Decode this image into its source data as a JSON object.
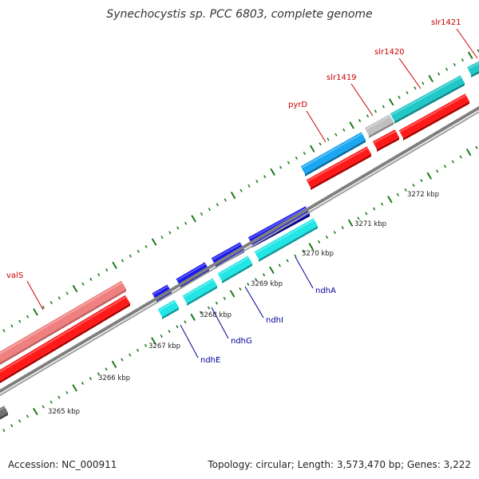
{
  "title": "Synechocystis sp. PCC 6803, complete genome",
  "footer": {
    "accession": "Accession: NC_000911",
    "summary": "Topology: circular; Length: 3,573,470 bp; Genes: 3,222"
  },
  "colors": {
    "backbone": "#7f7f7f",
    "tick": "#1a7a1a",
    "label_red": "#cc0000",
    "label_blue": "#000099"
  },
  "scale_labels": [
    "3265 kbp",
    "3266 kbp",
    "3267 kbp",
    "3268 kbp",
    "3269 kbp",
    "3270 kbp",
    "3271 kbp",
    "3272 kbp"
  ],
  "gene_labels": [
    {
      "name": "valS",
      "color": "#cc0000"
    },
    {
      "name": "pyrD",
      "color": "#cc0000"
    },
    {
      "name": "slr1419",
      "color": "#cc0000"
    },
    {
      "name": "slr1420",
      "color": "#cc0000"
    },
    {
      "name": "slr1421",
      "color": "#cc0000"
    },
    {
      "name": "ndhE",
      "color": "#000099"
    },
    {
      "name": "ndhG",
      "color": "#000099"
    },
    {
      "name": "ndhI",
      "color": "#000099"
    },
    {
      "name": "ndhA",
      "color": "#000099"
    }
  ]
}
